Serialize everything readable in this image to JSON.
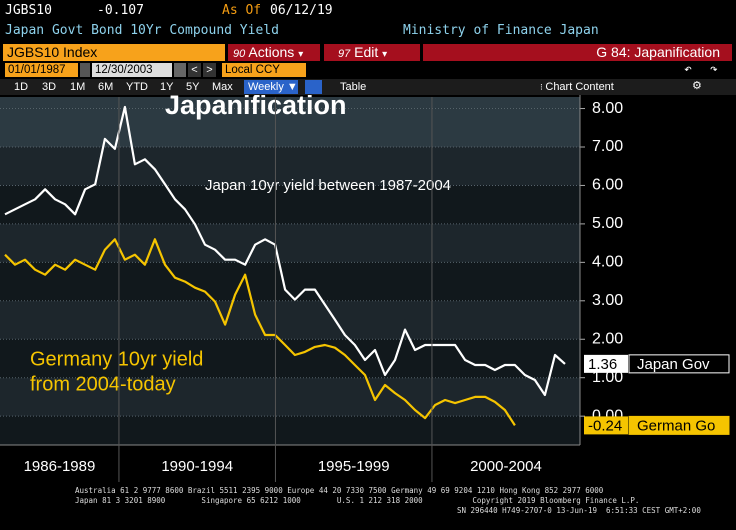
{
  "ui": {
    "row1": {
      "ticker": "JGBS10",
      "value": -0.107,
      "as_of_label": "As Of",
      "as_of_date": "06/12/19"
    },
    "row2": {
      "name": "Japan Govt Bond 10Yr Compound Yield",
      "source": "Ministry of Finance Japan"
    },
    "tabs": {
      "security": "JGBS10 Index",
      "actions_code": "90",
      "actions": "Actions",
      "edit_code": "97",
      "edit": "Edit",
      "page": "G 84: Japanification"
    },
    "dates": {
      "start": "01/01/1987",
      "end": "12/30/2003",
      "currency": "Local CCY"
    },
    "periods": [
      "1D",
      "3D",
      "1M",
      "6M",
      "YTD",
      "1Y",
      "5Y",
      "Max"
    ],
    "frequency": "Weekly",
    "table": "Table",
    "chart_content": "Chart Content",
    "footer": [
      "Australia 61 2 9777 8600 Brazil 5511 2395 9000 Europe 44 20 7330 7500 Germany 49 69 9204 1210 Hong Kong 852 2977 6000",
      "Japan 81 3 3201 8900        Singapore 65 6212 1000        U.S. 1 212 318 2000           Copyright 2019 Bloomberg Finance L.P.",
      "SN 296440 H749-2707-0 13-Jun-19  6:51:33 CEST GMT+2:00"
    ]
  },
  "chart_data": {
    "type": "line",
    "title": "Japanification",
    "annotations": [
      "Japan 10yr yield between 1987-2004",
      "Germany 10yr yield",
      "from 2004-today"
    ],
    "x": [
      1986.36,
      1986.68,
      1987.0,
      1987.32,
      1987.64,
      1987.96,
      1988.28,
      1988.6,
      1988.92,
      1989.24,
      1989.55,
      1989.87,
      1990.19,
      1990.51,
      1990.83,
      1991.15,
      1991.47,
      1991.79,
      1992.11,
      1992.43,
      1992.75,
      1993.07,
      1993.39,
      1993.71,
      1994.03,
      1994.35,
      1994.67,
      1994.99,
      1995.31,
      1995.62,
      1995.94,
      1996.26,
      1996.58,
      1996.9,
      1997.22,
      1997.54,
      1997.86,
      1998.18,
      1998.5,
      1998.82,
      1999.14,
      1999.46,
      1999.78,
      2000.1,
      2000.42,
      2000.74,
      2001.06,
      2001.38,
      2001.7,
      2002.01,
      2002.33,
      2002.65,
      2002.97,
      2003.29,
      2003.61,
      2003.93,
      2004.25
    ],
    "series": [
      {
        "name": "Japan Gov",
        "color": "#ffffff",
        "last_value": 1.36,
        "values": [
          5.25,
          5.38,
          5.51,
          5.64,
          5.9,
          5.64,
          5.51,
          5.25,
          5.9,
          6.03,
          7.21,
          6.95,
          8.04,
          6.55,
          6.68,
          6.42,
          6.03,
          5.64,
          5.38,
          4.99,
          4.46,
          4.33,
          4.07,
          4.07,
          3.94,
          4.46,
          4.6,
          4.46,
          3.29,
          3.03,
          3.29,
          3.29,
          2.9,
          2.51,
          2.11,
          1.85,
          1.46,
          1.72,
          1.07,
          1.46,
          2.25,
          1.72,
          1.85,
          1.85,
          1.85,
          1.85,
          1.46,
          1.33,
          1.33,
          1.2,
          1.33,
          1.33,
          1.07,
          0.94,
          0.55,
          1.59,
          1.36
        ]
      },
      {
        "name": "German Go",
        "color": "#f5c400",
        "last_value": -0.24,
        "values": [
          4.2,
          3.94,
          4.07,
          3.81,
          3.68,
          3.94,
          3.81,
          4.07,
          3.94,
          3.81,
          4.33,
          4.6,
          4.07,
          4.2,
          3.94,
          4.6,
          3.94,
          3.6,
          3.5,
          3.34,
          3.24,
          2.98,
          2.38,
          3.16,
          3.68,
          2.64,
          2.11,
          2.11,
          1.85,
          1.59,
          1.67,
          1.8,
          1.85,
          1.78,
          1.59,
          1.33,
          1.07,
          0.42,
          0.81,
          0.6,
          0.42,
          0.16,
          -0.05,
          0.29,
          0.42,
          0.34,
          0.42,
          0.5,
          0.5,
          0.37,
          0.16,
          -0.24,
          null,
          null,
          null,
          null,
          null
        ]
      }
    ],
    "xlim": [
      1986.2,
      2004.73
    ],
    "x_periods": [
      {
        "label": "1986-1989",
        "start": 1986.2,
        "end": 1990
      },
      {
        "label": "1990-1994",
        "start": 1990,
        "end": 1995
      },
      {
        "label": "1995-1999",
        "start": 1995,
        "end": 2000
      },
      {
        "label": "2000-2004",
        "start": 2000,
        "end": 2004.73
      }
    ],
    "ylim": [
      -0.75,
      8.3
    ],
    "yticks": [
      {
        "value": 0,
        "label": "0.00"
      },
      {
        "value": 1,
        "label": "1.00"
      },
      {
        "value": 2,
        "label": "2.00"
      },
      {
        "value": 3,
        "label": "3.00"
      },
      {
        "value": 4,
        "label": "4.00"
      },
      {
        "value": 5,
        "label": "5.00"
      },
      {
        "value": 6,
        "label": "6.00"
      },
      {
        "value": 7,
        "label": "7.00"
      },
      {
        "value": 8,
        "label": "8.00"
      }
    ],
    "grid": true,
    "axis_side": "right"
  }
}
